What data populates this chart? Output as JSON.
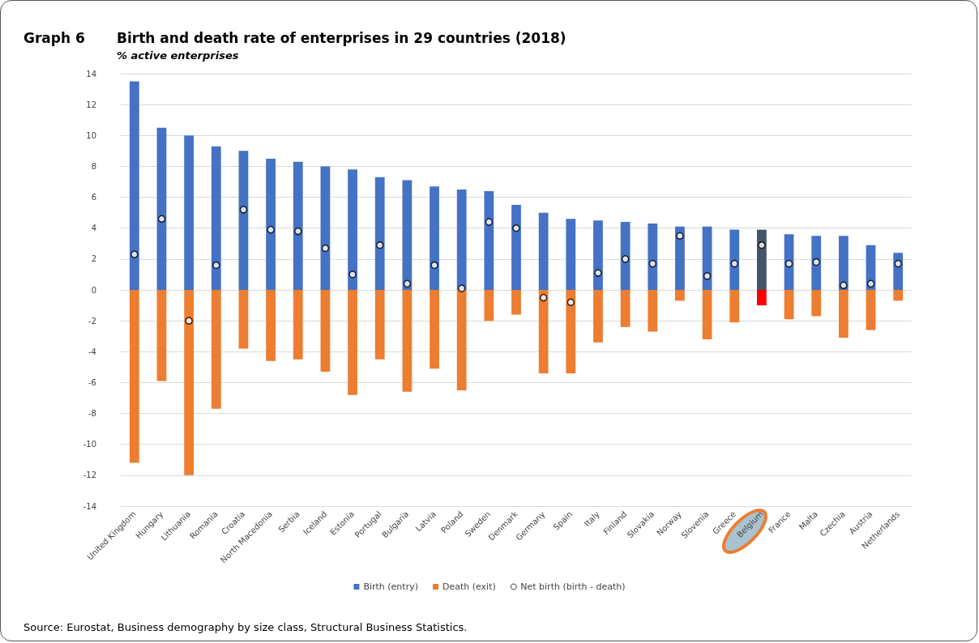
{
  "chart_data": {
    "type": "bar",
    "title": "Birth and death rate of enterprises in 29 countries (2018)",
    "subtitle": "% active enterprises",
    "annotations": [
      "Graph 6",
      "Source: Eurostat, Business demography by size class, Structural Business Statistics."
    ],
    "categories": [
      "United Kingdom",
      "Hungary",
      "Lithuania",
      "Romania",
      "Croatia",
      "North Macedonia",
      "Serbia",
      "Iceland",
      "Estonia",
      "Portugal",
      "Bulgaria",
      "Latvia",
      "Poland",
      "Sweden",
      "Denmark",
      "Germany",
      "Spain",
      "Italy",
      "Finland",
      "Slovakia",
      "Norway",
      "Slovenia",
      "Greece",
      "Belgium",
      "France",
      "Malta",
      "Czechia",
      "Austria",
      "Netherlands"
    ],
    "stacked": true,
    "series": [
      {
        "name": "Birth (entry)",
        "color": "#4472c4",
        "colors": [
          "#4472c4",
          "#4472c4",
          "#4472c4",
          "#4472c4",
          "#4472c4",
          "#4472c4",
          "#4472c4",
          "#4472c4",
          "#4472c4",
          "#4472c4",
          "#4472c4",
          "#4472c4",
          "#4472c4",
          "#4472c4",
          "#4472c4",
          "#4472c4",
          "#4472c4",
          "#4472c4",
          "#4472c4",
          "#4472c4",
          "#4472c4",
          "#4472c4",
          "#4472c4",
          "#44546a",
          "#4472c4",
          "#4472c4",
          "#4472c4",
          "#4472c4",
          "#4472c4"
        ],
        "values": [
          13.5,
          10.5,
          10.0,
          9.3,
          9.0,
          8.5,
          8.3,
          8.0,
          7.8,
          7.3,
          7.1,
          6.7,
          6.5,
          6.4,
          5.5,
          5.0,
          4.6,
          4.5,
          4.4,
          4.3,
          4.1,
          4.1,
          3.9,
          3.9,
          3.6,
          3.5,
          3.5,
          2.9,
          2.4
        ]
      },
      {
        "name": "Death (exit)",
        "color": "#ed7d31",
        "colors": [
          "#ed7d31",
          "#ed7d31",
          "#ed7d31",
          "#ed7d31",
          "#ed7d31",
          "#ed7d31",
          "#ed7d31",
          "#ed7d31",
          "#ed7d31",
          "#ed7d31",
          "#ed7d31",
          "#ed7d31",
          "#ed7d31",
          "#ed7d31",
          "#ed7d31",
          "#ed7d31",
          "#ed7d31",
          "#ed7d31",
          "#ed7d31",
          "#ed7d31",
          "#ed7d31",
          "#ed7d31",
          "#ed7d31",
          "#ff0000",
          "#ed7d31",
          "#ed7d31",
          "#ed7d31",
          "#ed7d31",
          "#ed7d31"
        ],
        "values": [
          -11.2,
          -5.9,
          -12.0,
          -7.7,
          -3.8,
          -4.6,
          -4.5,
          -5.3,
          -6.8,
          -4.5,
          -6.6,
          -5.1,
          -6.5,
          -2.0,
          -1.6,
          -5.4,
          -5.4,
          -3.4,
          -2.4,
          -2.7,
          -0.7,
          -3.2,
          -2.1,
          -1.0,
          -1.9,
          -1.7,
          -3.1,
          -2.6,
          -0.7
        ]
      },
      {
        "name": "Net birth (birth - death)",
        "type": "scatter",
        "color": "#ffffff",
        "marker": "circle",
        "values": [
          2.3,
          4.6,
          -2.0,
          1.6,
          5.2,
          3.9,
          3.8,
          2.7,
          1.0,
          2.9,
          0.4,
          1.6,
          0.1,
          4.4,
          4.0,
          -0.5,
          -0.8,
          1.1,
          2.0,
          1.7,
          3.5,
          0.9,
          1.7,
          2.9,
          1.7,
          1.8,
          0.3,
          0.4,
          1.7
        ]
      }
    ],
    "ylim": [
      -14,
      14
    ],
    "yticks": [
      -14,
      -12,
      -10,
      -8,
      -6,
      -4,
      -2,
      0,
      2,
      4,
      6,
      8,
      10,
      12,
      14
    ],
    "grid": "y",
    "legend": "bottom"
  }
}
